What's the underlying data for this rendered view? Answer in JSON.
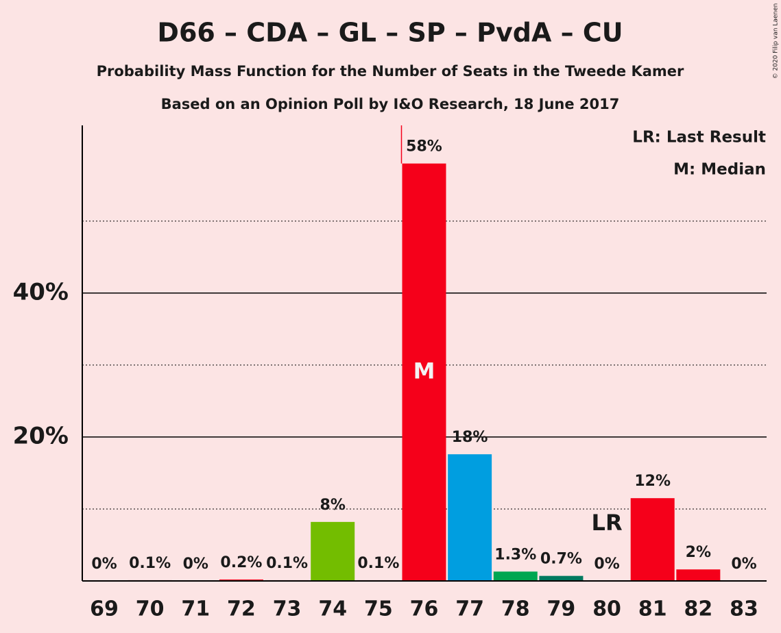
{
  "chart_data": {
    "type": "bar",
    "title": "D66 – CDA – GL – SP – PvdA – CU",
    "subtitles": [
      "Probability Mass Function for the Number of Seats in the Tweede Kamer",
      "Based on an Opinion Poll by I&O Research, 18 June 2017"
    ],
    "categories": [
      "69",
      "70",
      "71",
      "72",
      "73",
      "74",
      "75",
      "76",
      "77",
      "78",
      "79",
      "80",
      "81",
      "82",
      "83"
    ],
    "values": [
      0,
      0.1,
      0,
      0.2,
      0.1,
      8.2,
      0.1,
      58.0,
      17.6,
      1.3,
      0.7,
      0,
      11.5,
      1.6,
      0
    ],
    "value_labels": [
      "0%",
      "0.1%",
      "0%",
      "0.2%",
      "0.1%",
      "8%",
      "0.1%",
      "58%",
      "18%",
      "1.3%",
      "0.7%",
      "0%",
      "12%",
      "2%",
      "0%"
    ],
    "colors": [
      "#f5001a",
      "#f5001a",
      "#f5001a",
      "#f5001a",
      "#f5001a",
      "#73bd00",
      "#f5001a",
      "#f5001a",
      "#009ee0",
      "#00a651",
      "#00795f",
      "#f5001a",
      "#f5001a",
      "#f5001a",
      "#f5001a"
    ],
    "ylim": [
      0,
      63.3
    ],
    "yticks": [
      {
        "value": 20,
        "label": "20%"
      },
      {
        "value": 40,
        "label": "40%"
      }
    ],
    "minor_grid": [
      10,
      30,
      50
    ],
    "median_marker": {
      "at": "76",
      "label": "M"
    },
    "last_result_marker": {
      "at": "80",
      "label": "LR"
    },
    "legend": [
      "LR: Last Result",
      "M: Median"
    ],
    "copyright": "© 2020 Filip van Laenen"
  }
}
